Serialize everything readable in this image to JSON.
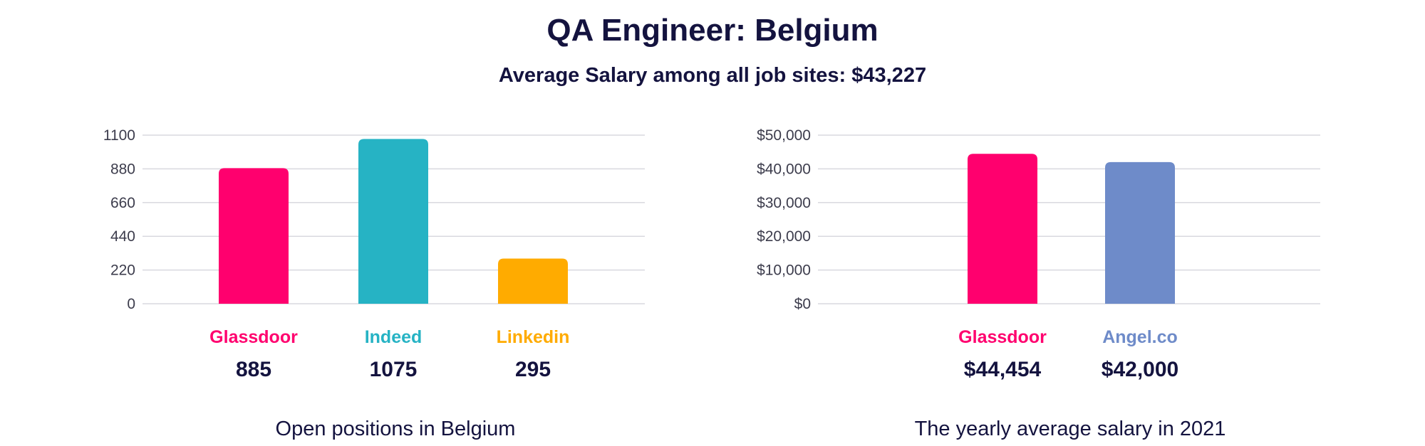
{
  "header": {
    "title": "QA Engineer: Belgium",
    "subtitle": "Average Salary among all job sites: $43,227"
  },
  "chart_data": [
    {
      "type": "bar",
      "title": "",
      "caption": "Open positions in Belgium",
      "categories": [
        "Glassdoor",
        "Indeed",
        "Linkedin"
      ],
      "values": [
        885,
        1075,
        295
      ],
      "value_labels": [
        "885",
        "1075",
        "295"
      ],
      "colors": [
        "#ff006e",
        "#26b3c4",
        "#ffab00"
      ],
      "yticks": [
        "0",
        "220",
        "440",
        "660",
        "880",
        "1100"
      ],
      "ylim": [
        0,
        1100
      ],
      "grid": true,
      "legend": "none"
    },
    {
      "type": "bar",
      "title": "",
      "caption": "The yearly average salary in 2021",
      "categories": [
        "Glassdoor",
        "Angel.co"
      ],
      "values": [
        44454,
        42000
      ],
      "value_labels": [
        "$44,454",
        "$42,000"
      ],
      "colors": [
        "#ff006e",
        "#6e8bc9"
      ],
      "yticks": [
        "$0",
        "$10,000",
        "$20,000",
        "$30,000",
        "$40,000",
        "$50,000"
      ],
      "ylim": [
        0,
        50000
      ],
      "grid": true,
      "legend": "none"
    }
  ]
}
